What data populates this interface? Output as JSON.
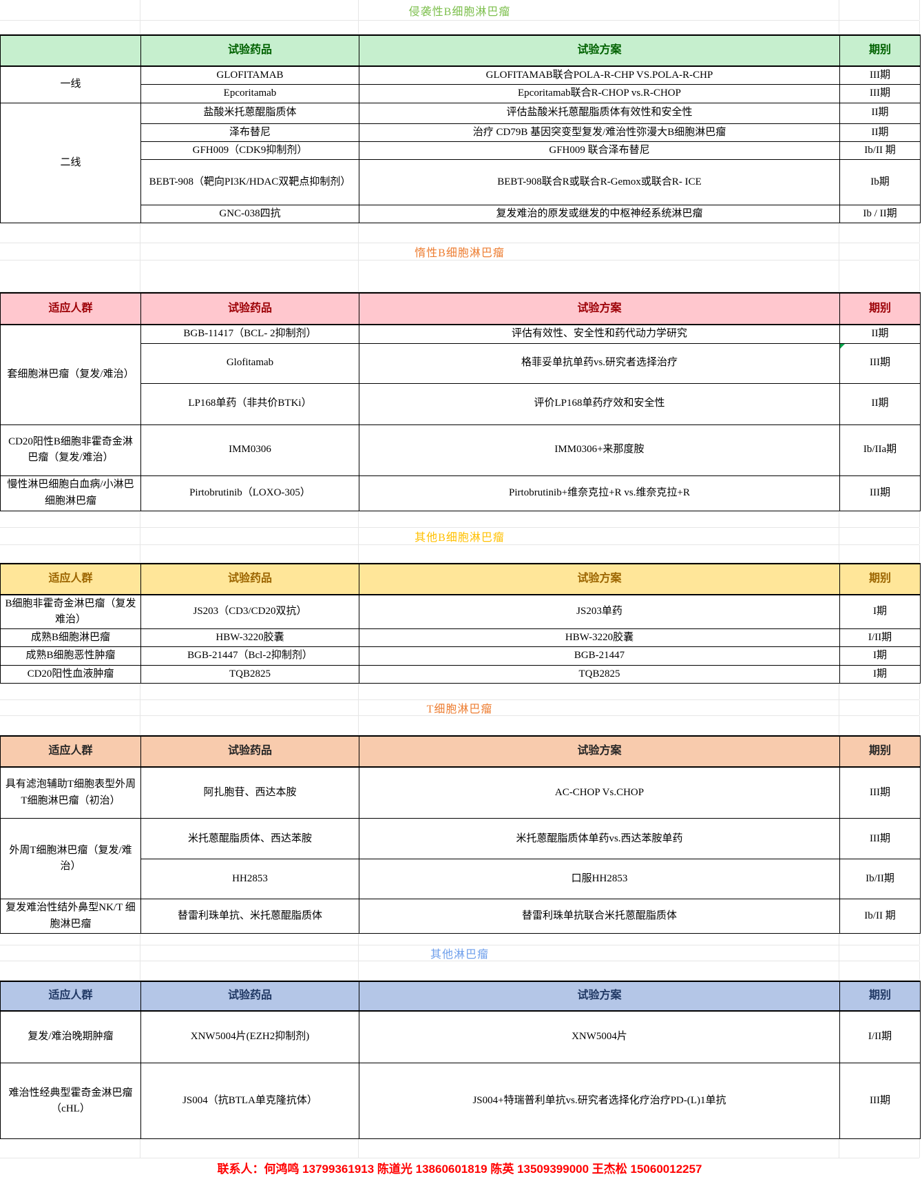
{
  "page": {
    "background": "#ffffff",
    "gridline_color": "#e6e6e6",
    "table_border_color": "#000000"
  },
  "footer": {
    "text": "联系人：何鸿鸣 13799361913 陈道光 13860601819 陈英 13509399000 王杰松 15060012257",
    "color": "#FF0000"
  },
  "flag_color": "#00A44A",
  "sections": [
    {
      "title": "侵袭性B细胞淋巴瘤",
      "title_color": "#7CBF4C",
      "header": {
        "bg": "#C6EFCE",
        "color": "#006100",
        "cols": [
          "",
          "试验药品",
          "试验方案",
          "期别"
        ]
      },
      "groups": [
        {
          "label": "一线",
          "rows": [
            {
              "drug": "GLOFITAMAB",
              "scheme": "GLOFITAMAB联合POLA-R-CHP VS.POLA-R-CHP",
              "phase": "III期"
            },
            {
              "drug": "Epcoritamab",
              "scheme": "Epcoritamab联合R-CHOP vs.R-CHOP",
              "phase": "III期"
            }
          ]
        },
        {
          "label": "二线",
          "rows": [
            {
              "drug": "盐酸米托蒽醌脂质体",
              "scheme": "评估盐酸米托蒽醌脂质体有效性和安全性",
              "phase": "II期"
            },
            {
              "drug": "泽布替尼",
              "scheme": "治疗 CD79B 基因突变型复发/难治性弥漫大B细胞淋巴瘤",
              "phase": "II期"
            },
            {
              "drug": "GFH009（CDK9抑制剂）",
              "scheme": "GFH009 联合泽布替尼",
              "phase": "Ib/II 期"
            },
            {
              "drug": "BEBT-908（靶向PI3K/HDAC双靶点抑制剂）",
              "scheme": "BEBT-908联合R或联合R-Gemox或联合R- ICE",
              "phase": "Ib期"
            },
            {
              "drug": "GNC-038四抗",
              "scheme": "复发难治的原发或继发的中枢神经系统淋巴瘤",
              "phase": "Ib / II期"
            }
          ]
        }
      ]
    },
    {
      "title": "惰性B细胞淋巴瘤",
      "title_color": "#ED7D31",
      "header": {
        "bg": "#FFC7CE",
        "color": "#9C0006",
        "cols": [
          "适应人群",
          "试验药品",
          "试验方案",
          "期别"
        ]
      },
      "groups": [
        {
          "label": "套细胞淋巴瘤（复发/难治）",
          "rows": [
            {
              "drug": "BGB-11417（BCL- 2抑制剂）",
              "scheme": "评估有效性、安全性和药代动力学研究",
              "phase": "II期"
            },
            {
              "drug": "Glofitamab",
              "scheme": "格菲妥单抗单药vs.研究者选择治疗",
              "phase": "III期",
              "flag": true
            },
            {
              "drug": "LP168单药（非共价BTKi）",
              "scheme": "评价LP168单药疗效和安全性",
              "phase": "II期"
            }
          ]
        },
        {
          "label": "CD20阳性B细胞非霍奇金淋巴瘤（复发/难治）",
          "rows": [
            {
              "drug": "IMM0306",
              "scheme": "IMM0306+来那度胺",
              "phase": "Ib/IIa期"
            }
          ]
        },
        {
          "label": "慢性淋巴细胞白血病/小淋巴细胞淋巴瘤",
          "rows": [
            {
              "drug": "Pirtobrutinib（LOXO-305）",
              "scheme": "Pirtobrutinib+维奈克拉+R  vs.维奈克拉+R",
              "phase": "III期"
            }
          ]
        }
      ]
    },
    {
      "title": "其他B细胞淋巴瘤",
      "title_color": "#FFC000",
      "header": {
        "bg": "#FFE699",
        "color": "#9C6500",
        "cols": [
          "适应人群",
          "试验药品",
          "试验方案",
          "期别"
        ]
      },
      "groups": [
        {
          "label": "B细胞非霍奇金淋巴瘤（复发难治）",
          "rows": [
            {
              "drug": "JS203（CD3/CD20双抗）",
              "scheme": "JS203单药",
              "phase": "I期"
            }
          ]
        },
        {
          "label": "成熟B细胞淋巴瘤",
          "rows": [
            {
              "drug": "HBW-3220胶囊",
              "scheme": "HBW-3220胶囊",
              "phase": "I/II期"
            }
          ]
        },
        {
          "label": "成熟B细胞恶性肿瘤",
          "rows": [
            {
              "drug": "BGB-21447（Bcl-2抑制剂）",
              "scheme": "BGB-21447",
              "phase": "I期"
            }
          ]
        },
        {
          "label": "CD20阳性血液肿瘤",
          "rows": [
            {
              "drug": "TQB2825",
              "scheme": "TQB2825",
              "phase": "I期"
            }
          ]
        }
      ]
    },
    {
      "title": "T细胞淋巴瘤",
      "title_color": "#ED7D31",
      "header": {
        "bg": "#F8CBAD",
        "color": "#262626",
        "cols": [
          "适应人群",
          "试验药品",
          "试验方案",
          "期别"
        ]
      },
      "groups": [
        {
          "label": "具有滤泡辅助T细胞表型外周T细胞淋巴瘤（初治）",
          "rows": [
            {
              "drug": "阿扎胞苷、西达本胺",
              "scheme": "AC-CHOP Vs.CHOP",
              "phase": "III期"
            }
          ]
        },
        {
          "label": "外周T细胞淋巴瘤（复发/难治）",
          "rows": [
            {
              "drug": "米托蒽醌脂质体、西达苯胺",
              "scheme": "米托蒽醌脂质体单药vs.西达苯胺单药",
              "phase": "III期"
            },
            {
              "drug": "HH2853",
              "scheme": "口服HH2853",
              "phase": "Ib/II期"
            }
          ]
        },
        {
          "label": "复发难治性结外鼻型NK/T 细胞淋巴瘤",
          "rows": [
            {
              "drug": "替雷利珠单抗、米托蒽醌脂质体",
              "scheme": "替雷利珠单抗联合米托蒽醌脂质体",
              "phase": "Ib/II 期"
            }
          ]
        }
      ]
    },
    {
      "title": "其他淋巴瘤",
      "title_color": "#6D9EEB",
      "header": {
        "bg": "#B4C6E7",
        "color": "#203864",
        "cols": [
          "适应人群",
          "试验药品",
          "试验方案",
          "期别"
        ]
      },
      "groups": [
        {
          "label": "复发/难治晚期肿瘤",
          "rows": [
            {
              "drug": "XNW5004片(EZH2抑制剂)",
              "scheme": "XNW5004片",
              "phase": "I/II期"
            }
          ]
        },
        {
          "label": "难治性经典型霍奇金淋巴瘤（cHL）",
          "rows": [
            {
              "drug": "JS004（抗BTLA单克隆抗体）",
              "scheme": "JS004+特瑞普利单抗vs.研究者选择化疗治疗PD-(L)1单抗",
              "phase": "III期"
            }
          ]
        }
      ]
    }
  ]
}
